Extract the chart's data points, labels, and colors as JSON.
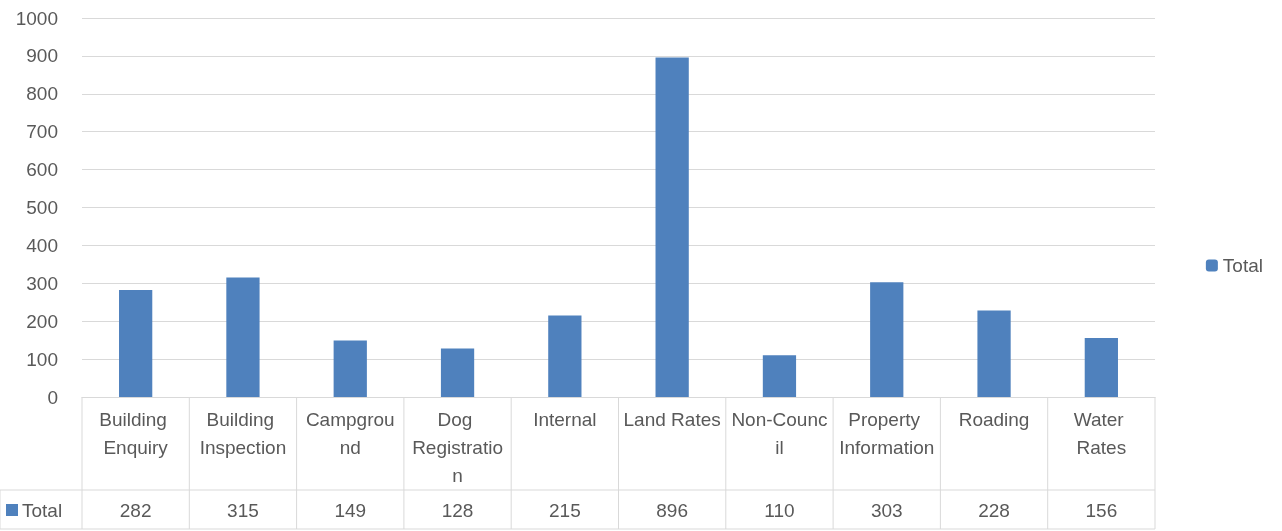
{
  "chart_data": {
    "type": "bar",
    "categories": [
      "Building Enquiry",
      "Building Inspection",
      "Campground",
      "Dog Registration",
      "Internal",
      "Land Rates",
      "Non-Council",
      "Property Information",
      "Roading",
      "Water Rates"
    ],
    "series": [
      {
        "name": "Total",
        "color": "#4f81bd",
        "values": [
          282,
          315,
          149,
          128,
          215,
          896,
          110,
          303,
          228,
          156
        ]
      }
    ],
    "ylim": [
      0,
      1000
    ],
    "yticks": [
      0,
      100,
      200,
      300,
      400,
      500,
      600,
      700,
      800,
      900,
      1000
    ],
    "grid": "y",
    "legend": "right",
    "data_labels": true
  }
}
